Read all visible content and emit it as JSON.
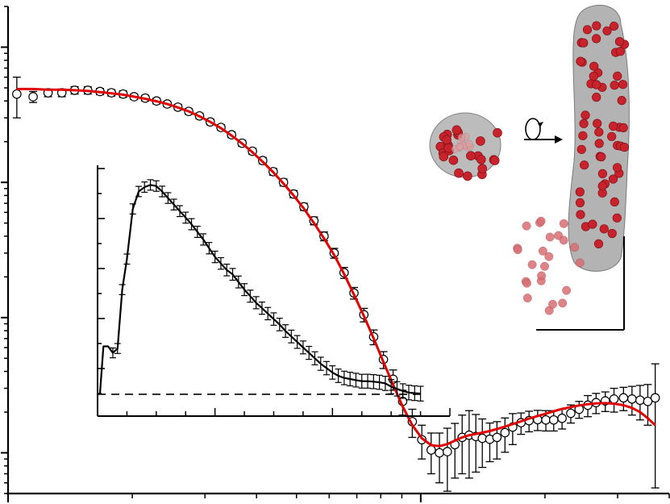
{
  "chart_data": [
    {
      "type": "scatter",
      "title": "",
      "xlabel": "",
      "ylabel": "",
      "log_x": true,
      "log_y": true,
      "xlim": [
        0.01,
        0.4
      ],
      "ylim": [
        0.005,
        20
      ],
      "grid": false,
      "legend": "none",
      "x": [
        0.0105,
        0.0115,
        0.0125,
        0.0135,
        0.0145,
        0.0156,
        0.0167,
        0.0178,
        0.019,
        0.0202,
        0.0215,
        0.0229,
        0.0243,
        0.0258,
        0.0274,
        0.0291,
        0.0309,
        0.0328,
        0.0348,
        0.0369,
        0.0391,
        0.0414,
        0.0439,
        0.0465,
        0.0492,
        0.0521,
        0.0551,
        0.0583,
        0.0617,
        0.0652,
        0.0689,
        0.0728,
        0.0769,
        0.0812,
        0.0857,
        0.0904,
        0.0954,
        0.1006,
        0.106,
        0.111,
        0.116,
        0.121,
        0.126,
        0.131,
        0.136,
        0.141,
        0.147,
        0.153,
        0.16,
        0.167,
        0.175,
        0.183,
        0.192,
        0.201,
        0.21,
        0.22,
        0.231,
        0.242,
        0.254,
        0.266,
        0.28,
        0.294,
        0.31,
        0.325,
        0.34,
        0.355,
        0.37
      ],
      "series": [
        {
          "kind": "data",
          "values": [
            4.5,
            4.3,
            4.6,
            4.6,
            4.8,
            4.8,
            4.7,
            4.6,
            4.5,
            4.3,
            4.2,
            4.0,
            3.8,
            3.6,
            3.35,
            3.1,
            2.8,
            2.55,
            2.25,
            1.95,
            1.7,
            1.45,
            1.2,
            1.0,
            0.82,
            0.66,
            0.52,
            0.4,
            0.3,
            0.215,
            0.152,
            0.105,
            0.072,
            0.049,
            0.035,
            0.024,
            0.017,
            0.0125,
            0.0105,
            0.01,
            0.0102,
            0.0115,
            0.013,
            0.0135,
            0.0132,
            0.0128,
            0.0126,
            0.013,
            0.0141,
            0.0155,
            0.0167,
            0.0173,
            0.0176,
            0.0175,
            0.0175,
            0.018,
            0.0196,
            0.021,
            0.0225,
            0.0235,
            0.0242,
            0.025,
            0.0255,
            0.025,
            0.0245,
            0.024,
            0.0255
          ],
          "err": [
            1.5,
            0.4,
            0.3,
            0.3,
            0.3,
            0.3,
            0.25,
            0.25,
            0.25,
            0.2,
            0.2,
            0.2,
            0.18,
            0.17,
            0.16,
            0.15,
            0.14,
            0.12,
            0.11,
            0.1,
            0.09,
            0.08,
            0.07,
            0.06,
            0.05,
            0.04,
            0.035,
            0.03,
            0.025,
            0.02,
            0.015,
            0.012,
            0.009,
            0.007,
            0.006,
            0.005,
            0.004,
            0.0035,
            0.0035,
            0.004,
            0.005,
            0.005,
            0.006,
            0.007,
            0.006,
            0.005,
            0.004,
            0.004,
            0.004,
            0.004,
            0.003,
            0.003,
            0.003,
            0.003,
            0.003,
            0.003,
            0.003,
            0.003,
            0.004,
            0.004,
            0.004,
            0.005,
            0.005,
            0.006,
            0.007,
            0.008,
            0.02
          ]
        },
        {
          "kind": "fit",
          "color": "#e00000",
          "values": [
            4.9,
            4.9,
            4.85,
            4.85,
            4.8,
            4.75,
            4.65,
            4.55,
            4.45,
            4.3,
            4.15,
            3.98,
            3.8,
            3.58,
            3.35,
            3.08,
            2.8,
            2.52,
            2.22,
            1.94,
            1.67,
            1.42,
            1.19,
            0.98,
            0.8,
            0.64,
            0.5,
            0.385,
            0.29,
            0.21,
            0.148,
            0.103,
            0.07,
            0.047,
            0.032,
            0.022,
            0.016,
            0.0128,
            0.0114,
            0.0112,
            0.0116,
            0.0123,
            0.013,
            0.0135,
            0.0138,
            0.0141,
            0.0145,
            0.015,
            0.0156,
            0.0163,
            0.0171,
            0.0179,
            0.0187,
            0.0195,
            0.0203,
            0.0211,
            0.0218,
            0.0224,
            0.0229,
            0.0232,
            0.0233,
            0.0231,
            0.0225,
            0.0215,
            0.02,
            0.018,
            0.016
          ]
        }
      ]
    },
    {
      "type": "line",
      "title": "",
      "xlabel": "",
      "ylabel": "",
      "xlim": [
        0,
        30
      ],
      "ylim": [
        -0.1,
        1.05
      ],
      "grid": false,
      "legend": "none",
      "baseline": 0,
      "x": [
        0.2,
        0.5,
        0.9,
        1.3,
        1.7,
        2.1,
        2.5,
        3.0,
        3.5,
        4.0,
        4.5,
        5.0,
        5.5,
        6.0,
        6.5,
        7.0,
        7.5,
        8.0,
        8.5,
        9.0,
        9.5,
        10.0,
        10.5,
        11.0,
        11.5,
        12.0,
        12.5,
        13.0,
        13.5,
        14.0,
        14.5,
        15.0,
        15.5,
        16.0,
        16.5,
        17.0,
        17.5,
        18.0,
        18.5,
        19.0,
        19.5,
        20.0,
        20.5,
        21.0,
        21.5,
        22.0,
        22.5,
        23.0,
        23.5,
        24.0,
        24.5,
        25.0,
        25.5,
        26.0,
        26.5,
        27.0,
        27.5
      ],
      "series": [
        {
          "kind": "pair-distance",
          "values": [
            0.0,
            0.22,
            0.22,
            0.19,
            0.21,
            0.48,
            0.62,
            0.85,
            0.93,
            0.95,
            0.96,
            0.955,
            0.93,
            0.9,
            0.87,
            0.84,
            0.81,
            0.78,
            0.745,
            0.71,
            0.67,
            0.63,
            0.6,
            0.57,
            0.55,
            0.515,
            0.48,
            0.45,
            0.42,
            0.395,
            0.37,
            0.345,
            0.32,
            0.29,
            0.265,
            0.24,
            0.215,
            0.19,
            0.165,
            0.14,
            0.12,
            0.1,
            0.085,
            0.075,
            0.07,
            0.065,
            0.06,
            0.06,
            0.058,
            0.055,
            0.05,
            0.035,
            0.025,
            0.015,
            0.008,
            0.005,
            0.003
          ]
        }
      ]
    }
  ]
}
